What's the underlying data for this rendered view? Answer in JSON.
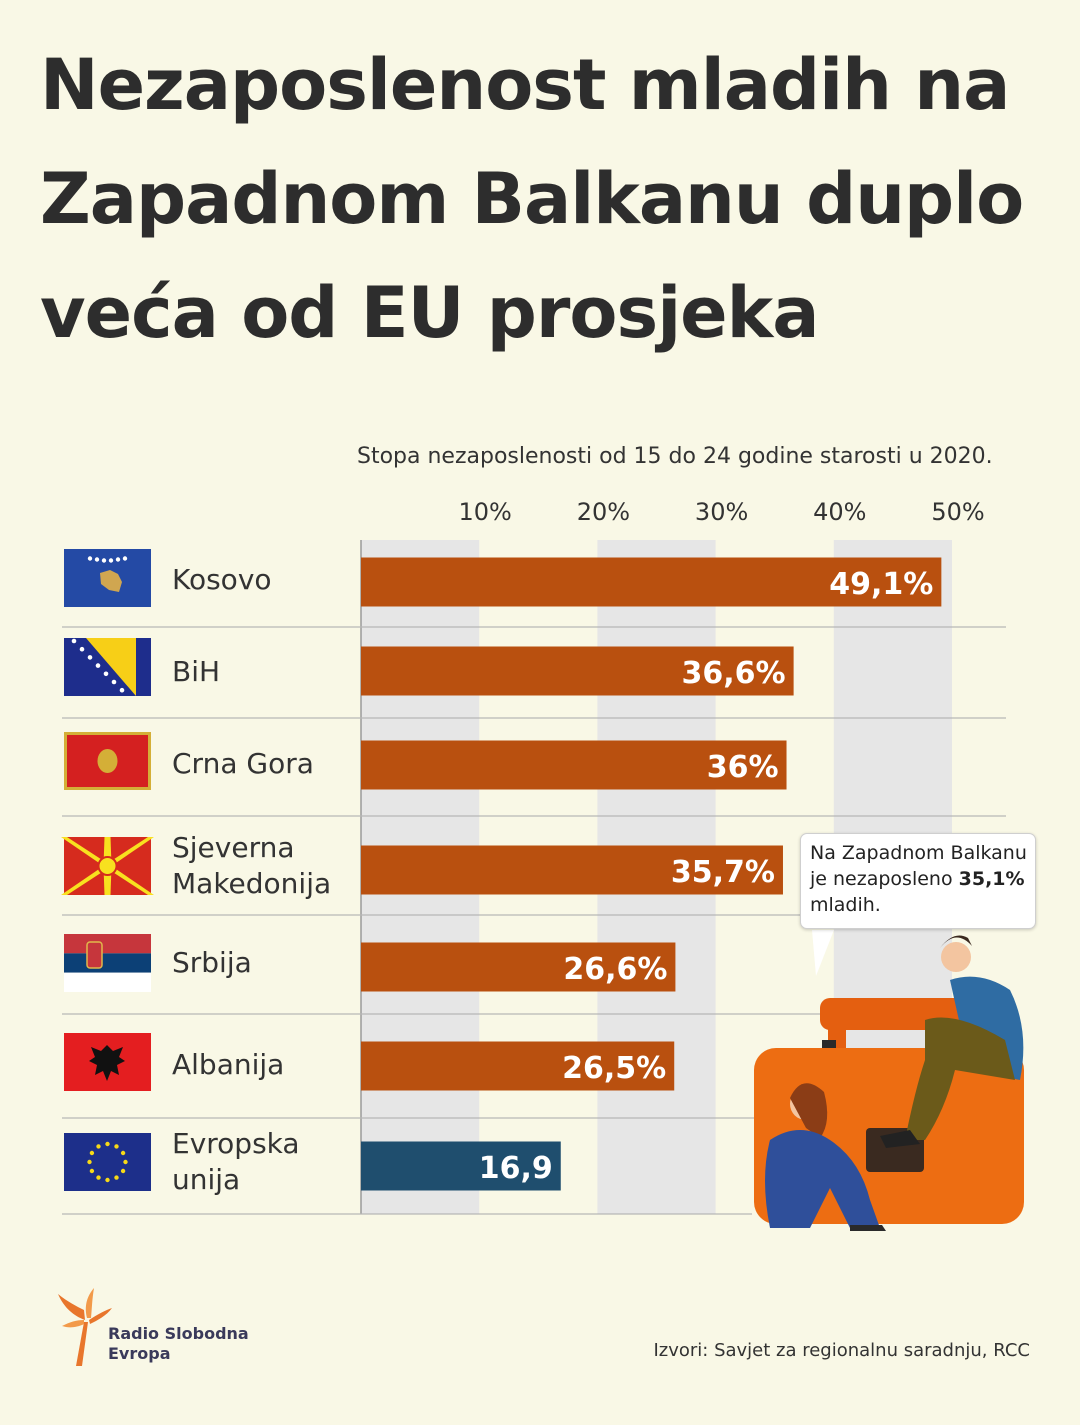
{
  "title_lines": [
    "Nezaposlenost mladih na",
    "Zapadnom Balkanu duplo",
    "veća od EU prosjeka"
  ],
  "colors": {
    "background": "#f9f8e6",
    "bar_balkans": "#b9500f",
    "bar_eu": "#1f4e6e",
    "stripe": "#e6e6e6"
  },
  "chart_data": {
    "type": "bar",
    "orientation": "horizontal",
    "subtitle": "Stopa nezaposlenosti od 15 do 24 godine starosti u 2020.",
    "xlim": [
      0,
      50
    ],
    "ticks": [
      {
        "value": 10,
        "label": "10%"
      },
      {
        "value": 20,
        "label": "20%"
      },
      {
        "value": 30,
        "label": "30%"
      },
      {
        "value": 40,
        "label": "40%"
      },
      {
        "value": 50,
        "label": "50%"
      }
    ],
    "categories": [
      "Kosovo",
      "BiH",
      "Crna Gora",
      "Sjeverna Makedonija",
      "Srbija",
      "Albanija",
      "Evropska unija"
    ],
    "values": [
      49.1,
      36.6,
      36,
      35.7,
      26.6,
      26.5,
      16.9
    ],
    "value_labels": [
      "49,1%",
      "36,6%",
      "36%",
      "35,7%",
      "26,6%",
      "26,5%",
      "16,9"
    ],
    "flags": [
      "kosovo-flag",
      "bih-flag",
      "montenegro-flag",
      "north-macedonia-flag",
      "serbia-flag",
      "albania-flag",
      "eu-flag"
    ]
  },
  "row_labels": [
    [
      "Kosovo"
    ],
    [
      "BiH"
    ],
    [
      "Crna Gora"
    ],
    [
      "Sjeverna",
      "Makedonija"
    ],
    [
      "Srbija"
    ],
    [
      "Albanija"
    ],
    [
      "Evropska",
      "unija"
    ]
  ],
  "callout": {
    "line1": "Na Zapadnom Balkanu",
    "line2_pre": "je nezaposleno ",
    "line2_bold": "35,1%",
    "line3": "mladih."
  },
  "logo": {
    "line1": "Radio Slobodna",
    "line2": "Evropa"
  },
  "source": "Izvori: Savjet za regionalnu saradnju, RCC"
}
